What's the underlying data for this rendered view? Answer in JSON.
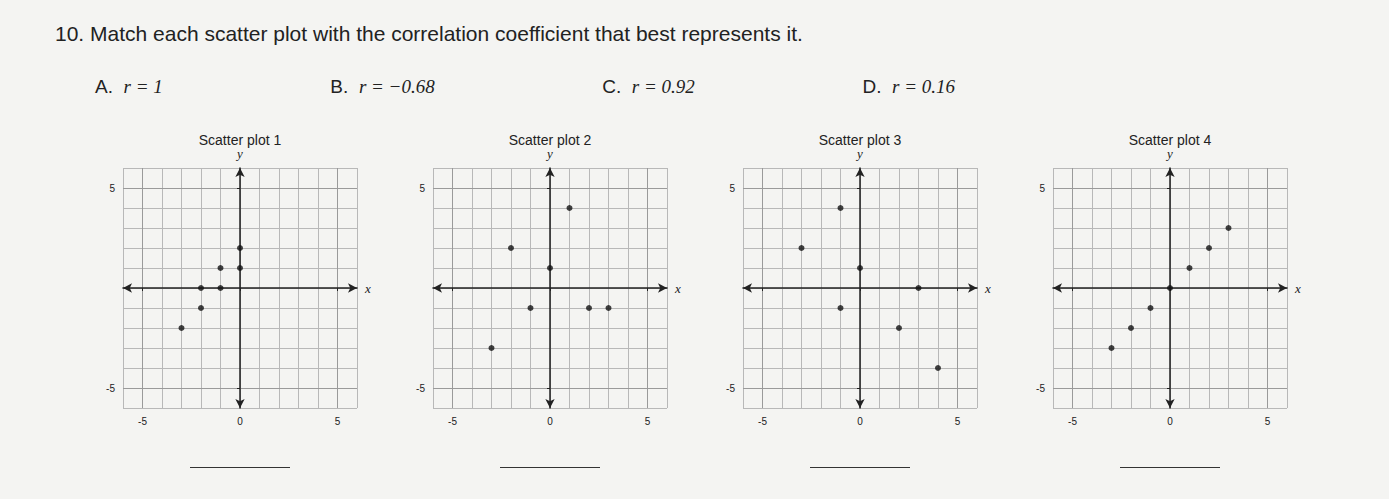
{
  "question": "10. Match each scatter plot with the correlation coefficient that best represents it.",
  "choices": [
    {
      "letter": "A.",
      "text": "r = 1"
    },
    {
      "letter": "B.",
      "text": "r = −0.68"
    },
    {
      "letter": "C.",
      "text": "r = 0.92"
    },
    {
      "letter": "D.",
      "text": "r = 0.16"
    }
  ],
  "chart_data": [
    {
      "type": "scatter",
      "title": "Scatter plot 1",
      "x_label": "x",
      "y_label": "y",
      "x": [
        0,
        0,
        -1,
        -1,
        -2,
        -2,
        -3
      ],
      "values": [
        2,
        1,
        1,
        0,
        0,
        -1,
        -2
      ],
      "color": "#111111",
      "xlim": [
        -6,
        6
      ],
      "ylim": [
        -6,
        6
      ],
      "xticks": [
        -5,
        0,
        5
      ],
      "yticks": [
        -5,
        5
      ],
      "grid": true
    },
    {
      "type": "scatter",
      "title": "Scatter plot 2",
      "x_label": "x",
      "y_label": "y",
      "x": [
        1,
        -2,
        0,
        -1,
        2,
        3,
        -3
      ],
      "values": [
        4,
        2,
        1,
        -1,
        -1,
        -1,
        -3
      ],
      "color": "#111111",
      "xlim": [
        -6,
        6
      ],
      "ylim": [
        -6,
        6
      ],
      "xticks": [
        -5,
        0,
        5
      ],
      "yticks": [
        -5,
        5
      ],
      "grid": true
    },
    {
      "type": "scatter",
      "title": "Scatter plot 3",
      "x_label": "x",
      "y_label": "y",
      "x": [
        -1,
        -3,
        0,
        3,
        -1,
        2,
        4
      ],
      "values": [
        4,
        2,
        1,
        0,
        -1,
        -2,
        -4
      ],
      "color": "#111111",
      "xlim": [
        -6,
        6
      ],
      "ylim": [
        -6,
        6
      ],
      "xticks": [
        -5,
        0,
        5
      ],
      "yticks": [
        -5,
        5
      ],
      "grid": true
    },
    {
      "type": "scatter",
      "title": "Scatter plot 4",
      "x_label": "x",
      "y_label": "y",
      "x": [
        -3,
        -2,
        -1,
        0,
        1,
        2,
        3
      ],
      "values": [
        -3,
        -2,
        -1,
        0,
        1,
        2,
        3
      ],
      "color": "#111111",
      "xlim": [
        -6,
        6
      ],
      "ylim": [
        -6,
        6
      ],
      "xticks": [
        -5,
        0,
        5
      ],
      "yticks": [
        -5,
        5
      ],
      "grid": true
    }
  ]
}
